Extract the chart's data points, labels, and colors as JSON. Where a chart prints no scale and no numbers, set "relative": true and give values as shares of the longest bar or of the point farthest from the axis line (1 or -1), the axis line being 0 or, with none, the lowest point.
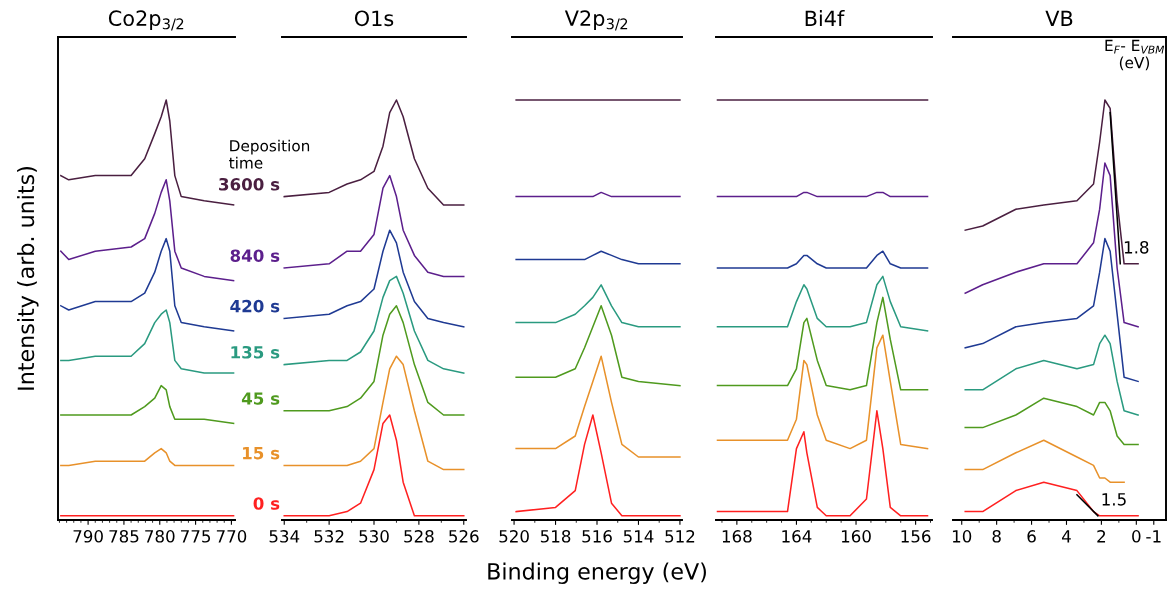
{
  "chart_data": [
    {
      "type": "line",
      "relative": true,
      "title": "Co2p$_{3/2}$",
      "ylabel": "Intensity (arb. units)",
      "xlim": [
        794.2,
        769.5
      ],
      "xticks": [
        790,
        785,
        780,
        775,
        770
      ],
      "x": [
        793.8,
        792.7,
        789,
        784,
        782.1,
        780.7,
        779.8,
        779.1,
        778.6,
        777.9,
        777,
        773.8,
        769.7
      ],
      "series": [
        {
          "color": "#4a1f40",
          "values": [
            0.82,
            0.81,
            0.82,
            0.82,
            0.86,
            0.92,
            0.96,
            1.0,
            0.95,
            0.82,
            0.77,
            0.76,
            0.75
          ]
        },
        {
          "color": "#5c1f8c",
          "values": [
            0.64,
            0.62,
            0.64,
            0.65,
            0.67,
            0.73,
            0.78,
            0.81,
            0.76,
            0.64,
            0.6,
            0.58,
            0.57
          ]
        },
        {
          "color": "#1f3a93",
          "values": [
            0.51,
            0.5,
            0.52,
            0.52,
            0.54,
            0.59,
            0.64,
            0.67,
            0.64,
            0.51,
            0.47,
            0.46,
            0.45
          ]
        },
        {
          "color": "#2a9a80",
          "values": [
            0.38,
            0.38,
            0.39,
            0.39,
            0.42,
            0.47,
            0.49,
            0.5,
            0.47,
            0.38,
            0.36,
            0.35,
            0.35
          ]
        },
        {
          "color": "#4f9a1e",
          "values": [
            0.25,
            0.25,
            0.25,
            0.25,
            0.27,
            0.29,
            0.32,
            0.31,
            0.27,
            0.24,
            0.24,
            0.24,
            0.23
          ]
        },
        {
          "color": "#e8912a",
          "values": [
            0.13,
            0.13,
            0.14,
            0.14,
            0.14,
            0.16,
            0.17,
            0.16,
            0.14,
            0.13,
            0.13,
            0.13,
            0.13
          ]
        },
        {
          "color": "#ff2020",
          "values": [
            0.01,
            0.01,
            0.01,
            0.01,
            0.01,
            0.01,
            0.01,
            0.01,
            0.01,
            0.01,
            0.01,
            0.01,
            0.01
          ]
        }
      ]
    },
    {
      "type": "line",
      "relative": true,
      "title": "O1s",
      "legend_title": "Deposition time",
      "xlim": [
        534.1,
        525.9
      ],
      "xticks": [
        534,
        532,
        530,
        528,
        526
      ],
      "x": [
        534.0,
        532.0,
        531.2,
        530.6,
        530.0,
        529.6,
        529.3,
        529.0,
        528.7,
        528.2,
        527.6,
        526.9,
        526.0
      ],
      "series": [
        {
          "name": "3600 s",
          "color": "#4a1f40",
          "values": [
            0.77,
            0.78,
            0.8,
            0.81,
            0.83,
            0.89,
            0.97,
            1.0,
            0.96,
            0.86,
            0.79,
            0.75,
            0.75
          ]
        },
        {
          "name": "840 s",
          "color": "#5c1f8c",
          "values": [
            0.6,
            0.61,
            0.64,
            0.64,
            0.68,
            0.79,
            0.82,
            0.77,
            0.69,
            0.63,
            0.59,
            0.58,
            0.58
          ]
        },
        {
          "name": "420 s",
          "color": "#1f3a93",
          "values": [
            0.48,
            0.49,
            0.51,
            0.52,
            0.55,
            0.64,
            0.69,
            0.66,
            0.59,
            0.52,
            0.48,
            0.47,
            0.46
          ]
        },
        {
          "name": "135 s",
          "color": "#2a9a80",
          "values": [
            0.37,
            0.38,
            0.38,
            0.4,
            0.45,
            0.53,
            0.57,
            0.58,
            0.54,
            0.45,
            0.38,
            0.36,
            0.35
          ]
        },
        {
          "name": "45 s",
          "color": "#4f9a1e",
          "values": [
            0.26,
            0.26,
            0.27,
            0.29,
            0.33,
            0.44,
            0.49,
            0.51,
            0.47,
            0.37,
            0.28,
            0.25,
            0.25
          ]
        },
        {
          "name": "15 s",
          "color": "#e8912a",
          "values": [
            0.13,
            0.13,
            0.13,
            0.14,
            0.17,
            0.28,
            0.36,
            0.39,
            0.37,
            0.26,
            0.14,
            0.12,
            0.12
          ]
        },
        {
          "name": "0 s",
          "color": "#ff2020",
          "values": [
            0.01,
            0.01,
            0.02,
            0.04,
            0.12,
            0.23,
            0.25,
            0.19,
            0.09,
            0.01,
            0.01,
            0.01,
            0.01
          ]
        }
      ]
    },
    {
      "type": "line",
      "relative": true,
      "title": "V2p$_{3/2}$",
      "xlabel": "Binding energy (eV)",
      "xlim": [
        520.1,
        511.9
      ],
      "xticks": [
        520,
        518,
        516,
        514,
        512
      ],
      "x": [
        519.9,
        518.0,
        517.05,
        516.6,
        516.2,
        515.8,
        515.3,
        514.8,
        514.0,
        512.0
      ],
      "series": [
        {
          "color": "#4a1f40",
          "values": [
            1.0,
            1.0,
            1.0,
            1.0,
            1.0,
            1.0,
            1.0,
            1.0,
            1.0,
            1.0
          ]
        },
        {
          "color": "#5c1f8c",
          "values": [
            0.77,
            0.77,
            0.77,
            0.77,
            0.77,
            0.78,
            0.77,
            0.77,
            0.77,
            0.77
          ]
        },
        {
          "color": "#1f3a93",
          "values": [
            0.62,
            0.62,
            0.62,
            0.62,
            0.63,
            0.64,
            0.63,
            0.62,
            0.61,
            0.61
          ]
        },
        {
          "color": "#2a9a80",
          "values": [
            0.47,
            0.47,
            0.49,
            0.51,
            0.53,
            0.56,
            0.51,
            0.47,
            0.46,
            0.46
          ]
        },
        {
          "color": "#4f9a1e",
          "values": [
            0.34,
            0.34,
            0.36,
            0.41,
            0.46,
            0.51,
            0.44,
            0.34,
            0.33,
            0.32
          ]
        },
        {
          "color": "#e8912a",
          "values": [
            0.17,
            0.17,
            0.2,
            0.27,
            0.33,
            0.39,
            0.28,
            0.18,
            0.15,
            0.15
          ]
        },
        {
          "color": "#ff2020",
          "values": [
            0.02,
            0.03,
            0.07,
            0.18,
            0.25,
            0.16,
            0.04,
            0.01,
            0.01,
            0.01
          ]
        }
      ]
    },
    {
      "type": "line",
      "relative": true,
      "title": "Bi4f",
      "xlim": [
        169.4,
        154.9
      ],
      "xticks": [
        168,
        164,
        160,
        156
      ],
      "x": [
        169.3,
        164.6,
        164.0,
        163.5,
        163.3,
        162.6,
        162.0,
        160.4,
        159.3,
        158.6,
        158.2,
        157.7,
        157.0,
        155.2
      ],
      "series": [
        {
          "color": "#4a1f40",
          "values": [
            1.0,
            1.0,
            1.0,
            1.0,
            1.0,
            1.0,
            1.0,
            1.0,
            1.0,
            1.0,
            1.0,
            1.0,
            1.0,
            1.0
          ]
        },
        {
          "color": "#5c1f8c",
          "values": [
            0.77,
            0.77,
            0.77,
            0.78,
            0.78,
            0.77,
            0.77,
            0.77,
            0.77,
            0.78,
            0.78,
            0.77,
            0.77,
            0.77
          ]
        },
        {
          "color": "#1f3a93",
          "values": [
            0.6,
            0.6,
            0.61,
            0.63,
            0.63,
            0.61,
            0.6,
            0.6,
            0.6,
            0.63,
            0.64,
            0.61,
            0.6,
            0.6
          ]
        },
        {
          "color": "#2a9a80",
          "values": [
            0.46,
            0.46,
            0.52,
            0.56,
            0.55,
            0.48,
            0.46,
            0.46,
            0.47,
            0.56,
            0.58,
            0.52,
            0.46,
            0.45
          ]
        },
        {
          "color": "#4f9a1e",
          "values": [
            0.32,
            0.32,
            0.36,
            0.47,
            0.48,
            0.38,
            0.32,
            0.31,
            0.32,
            0.47,
            0.53,
            0.43,
            0.31,
            0.31
          ]
        },
        {
          "color": "#e8912a",
          "values": [
            0.19,
            0.19,
            0.24,
            0.38,
            0.37,
            0.25,
            0.19,
            0.17,
            0.19,
            0.41,
            0.44,
            0.33,
            0.18,
            0.17
          ]
        },
        {
          "color": "#ff2020",
          "values": [
            0.02,
            0.02,
            0.17,
            0.21,
            0.16,
            0.03,
            0.01,
            0.01,
            0.05,
            0.26,
            0.17,
            0.03,
            0.01,
            0.01
          ]
        }
      ]
    },
    {
      "type": "line",
      "relative": true,
      "title": "VB",
      "xlim": [
        10.5,
        -1.7
      ],
      "xticks": [
        10,
        8,
        6,
        4,
        2,
        0,
        -1
      ],
      "x": [
        9.8,
        8.8,
        6.9,
        5.3,
        3.4,
        2.45,
        2.1,
        1.8,
        1.5,
        1.1,
        0.7,
        -0.1
      ],
      "annotations": [
        "E$_{F}$- E$_{VBM}$\n(eV)",
        {
          "text": "1.8",
          "x": 0.92,
          "y": 0.61
        },
        {
          "text": "1.5",
          "x": 2.2,
          "y": 0.01
        }
      ],
      "series": [
        {
          "color": "#4a1f40",
          "values": [
            0.69,
            0.7,
            0.74,
            0.75,
            0.76,
            0.8,
            0.9,
            1.0,
            0.98,
            0.76,
            0.61,
            0.61
          ]
        },
        {
          "color": "#5c1f8c",
          "values": [
            0.54,
            0.56,
            0.59,
            0.61,
            0.61,
            0.66,
            0.74,
            0.85,
            0.82,
            0.6,
            0.47,
            0.46
          ]
        },
        {
          "color": "#1f3a93",
          "values": [
            0.41,
            0.42,
            0.46,
            0.47,
            0.48,
            0.51,
            0.59,
            0.67,
            0.64,
            0.49,
            0.34,
            0.33
          ]
        },
        {
          "color": "#2a9a80",
          "values": [
            0.31,
            0.31,
            0.36,
            0.38,
            0.36,
            0.37,
            0.42,
            0.44,
            0.42,
            0.33,
            0.26,
            0.25
          ]
        },
        {
          "color": "#4f9a1e",
          "values": [
            0.22,
            0.22,
            0.25,
            0.29,
            0.27,
            0.25,
            0.28,
            0.28,
            0.26,
            0.2,
            0.18,
            0.18
          ]
        },
        {
          "color": "#e8912a",
          "values": [
            0.12,
            0.12,
            0.16,
            0.19,
            0.15,
            0.13,
            0.1,
            0.1,
            0.09,
            0.09,
            0.09,
            null
          ]
        },
        {
          "color": "#ff2020",
          "values": [
            0.02,
            0.02,
            0.07,
            0.09,
            0.07,
            0.02,
            0.01,
            0.01,
            0.01,
            0.01,
            0.01,
            0.01
          ]
        },
        {
          "color": "#000000",
          "x": [
            1.5,
            0.92
          ],
          "values": [
            0.97,
            0.61
          ]
        },
        {
          "color": "#000000",
          "x": [
            3.4,
            2.2
          ],
          "values": [
            0.06,
            0.01
          ]
        }
      ]
    }
  ]
}
